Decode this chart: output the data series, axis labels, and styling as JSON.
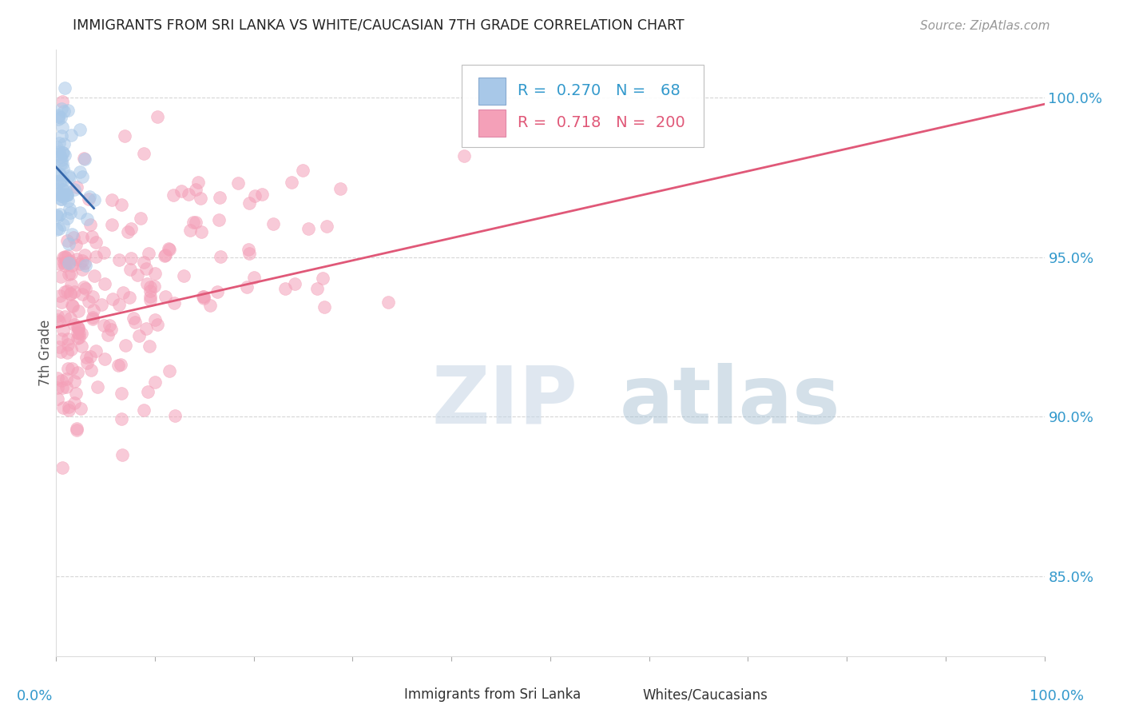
{
  "title": "IMMIGRANTS FROM SRI LANKA VS WHITE/CAUCASIAN 7TH GRADE CORRELATION CHART",
  "source": "Source: ZipAtlas.com",
  "ylabel": "7th Grade",
  "r_blue": 0.27,
  "n_blue": 68,
  "r_pink": 0.718,
  "n_pink": 200,
  "blue_color": "#a8c8e8",
  "pink_color": "#f4a0b8",
  "blue_line_color": "#3366aa",
  "pink_line_color": "#e05878",
  "axis_label_color": "#3399cc",
  "watermark_zip_color": "#c0cfe0",
  "watermark_atlas_color": "#a0c0d8",
  "grid_color": "#cccccc",
  "background_color": "#ffffff",
  "xlim": [
    0.0,
    1.0
  ],
  "ylim": [
    82.5,
    101.5
  ],
  "yticks": [
    85.0,
    90.0,
    95.0,
    100.0
  ],
  "ytick_labels": [
    "85.0%",
    "90.0%",
    "95.0%",
    "100.0%"
  ]
}
